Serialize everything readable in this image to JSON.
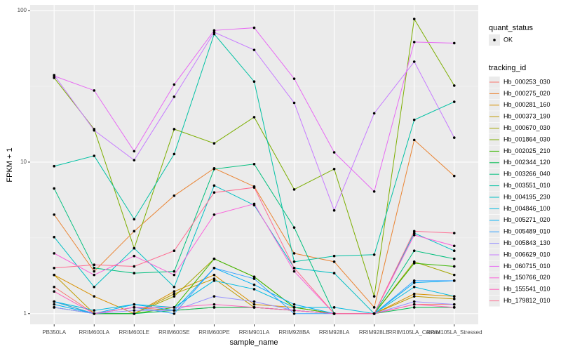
{
  "chart_data": {
    "type": "line",
    "x_label": "sample_name",
    "y_label": "FPKM + 1",
    "log_y": true,
    "grid": true,
    "categories": [
      "PB350LA",
      "RRIM600LA",
      "RRIM600LE",
      "RRIM600SE",
      "RRIM600PE",
      "RRIM901LA",
      "RRIM928BA",
      "RRIM928LA",
      "RRIM928LE",
      "RRIM105LA_Control",
      "RRIM105LA_Stressed"
    ],
    "ylim": [
      0.85,
      109
    ],
    "yticks": [
      1,
      10,
      100
    ],
    "point_color": "#000000",
    "legend_position": "right",
    "point_legend": {
      "title": "quant_status",
      "levels": [
        "OK"
      ]
    },
    "line_legend_title": "tracking_id",
    "series": [
      {
        "name": "Hb_000253_030",
        "color": "#F8766D",
        "values": [
          1.5,
          1.0,
          1.1,
          1.05,
          1.1,
          1.1,
          1.05,
          1.0,
          1.0,
          1.15,
          1.15
        ]
      },
      {
        "name": "Hb_000275_020",
        "color": "#EA8331",
        "values": [
          4.5,
          1.9,
          3.5,
          6.0,
          9.1,
          6.9,
          2.5,
          2.2,
          1.1,
          14,
          8.1
        ]
      },
      {
        "name": "Hb_000281_160",
        "color": "#D89000",
        "values": [
          1.8,
          1.3,
          1.0,
          1.4,
          1.8,
          1.15,
          1.1,
          1.0,
          1.0,
          1.35,
          1.3
        ]
      },
      {
        "name": "Hb_000373_190",
        "color": "#C09B00",
        "values": [
          1.8,
          1.0,
          1.0,
          1.35,
          1.7,
          1.1,
          1.05,
          1.0,
          1.0,
          1.3,
          1.25
        ]
      },
      {
        "name": "Hb_000670_030",
        "color": "#A3A500",
        "values": [
          1.2,
          1.0,
          1.0,
          1.3,
          2.3,
          1.75,
          1.1,
          1.0,
          1.0,
          2.2,
          1.8
        ]
      },
      {
        "name": "Hb_001864_030",
        "color": "#7CAE00",
        "values": [
          36,
          16.5,
          2.7,
          16.5,
          13.3,
          19.8,
          6.6,
          9.0,
          1.3,
          88,
          32
        ]
      },
      {
        "name": "Hb_002025_210",
        "color": "#39B600",
        "values": [
          1.2,
          1.0,
          1.0,
          1.1,
          2.3,
          1.75,
          1.1,
          1.0,
          1.0,
          2.15,
          2.05
        ]
      },
      {
        "name": "Hb_002344_120",
        "color": "#00BB4E",
        "values": [
          1.1,
          1.0,
          1.0,
          1.05,
          1.1,
          1.1,
          1.05,
          1.0,
          1.0,
          1.1,
          1.1
        ]
      },
      {
        "name": "Hb_003266_040",
        "color": "#00BF7D",
        "values": [
          6.7,
          2.0,
          1.85,
          1.9,
          9.0,
          9.7,
          3.7,
          1.0,
          1.0,
          2.6,
          2.3
        ]
      },
      {
        "name": "Hb_003551_010",
        "color": "#00C1A3",
        "values": [
          9.4,
          11,
          4.2,
          11.3,
          70,
          34,
          2.2,
          2.4,
          2.45,
          19,
          25
        ]
      },
      {
        "name": "Hb_004195_230",
        "color": "#00BFC4",
        "values": [
          3.2,
          1.5,
          2.7,
          1.5,
          7.0,
          5.2,
          2.0,
          1.85,
          1.0,
          3.4,
          2.6
        ]
      },
      {
        "name": "Hb_004846_100",
        "color": "#00BAE0",
        "values": [
          1.2,
          1.05,
          1.15,
          1.1,
          1.65,
          1.45,
          1.1,
          1.1,
          1.0,
          1.5,
          1.3
        ]
      },
      {
        "name": "Hb_005271_020",
        "color": "#00B0F6",
        "values": [
          1.15,
          1.0,
          1.15,
          1.05,
          2.0,
          1.55,
          1.15,
          1.0,
          1.0,
          1.6,
          1.65
        ]
      },
      {
        "name": "Hb_005489_010",
        "color": "#35A2FF",
        "values": [
          1.2,
          1.0,
          1.1,
          1.0,
          2.0,
          1.7,
          1.0,
          1.0,
          1.0,
          1.65,
          1.65
        ]
      },
      {
        "name": "Hb_005843_130",
        "color": "#9590FF",
        "values": [
          1.1,
          1.0,
          1.05,
          1.05,
          1.3,
          1.2,
          1.05,
          1.0,
          1.0,
          1.2,
          1.15
        ]
      },
      {
        "name": "Hb_006629_010",
        "color": "#C77CFF",
        "values": [
          37.5,
          16.2,
          10.3,
          27,
          72,
          55,
          24.6,
          4.8,
          21,
          46,
          14.5
        ]
      },
      {
        "name": "Hb_060715_010",
        "color": "#E76BF3",
        "values": [
          37,
          29.7,
          11.8,
          32.5,
          74,
          77,
          35.5,
          11.6,
          6.4,
          62,
          61
        ]
      },
      {
        "name": "Hb_150766_020",
        "color": "#FA62DB",
        "values": [
          2.5,
          1.8,
          2.4,
          1.8,
          4.5,
          5.3,
          1.9,
          1.0,
          1.0,
          3.3,
          2.8
        ]
      },
      {
        "name": "Hb_155541_010",
        "color": "#FF62BC",
        "values": [
          1.4,
          1.0,
          1.1,
          1.1,
          1.15,
          1.1,
          1.05,
          1.0,
          1.0,
          1.15,
          1.1
        ]
      },
      {
        "name": "Hb_179812_010",
        "color": "#FF6C91",
        "values": [
          2.0,
          2.1,
          2.05,
          2.6,
          6.3,
          6.8,
          2.0,
          1.0,
          1.0,
          3.5,
          3.4
        ]
      }
    ]
  }
}
